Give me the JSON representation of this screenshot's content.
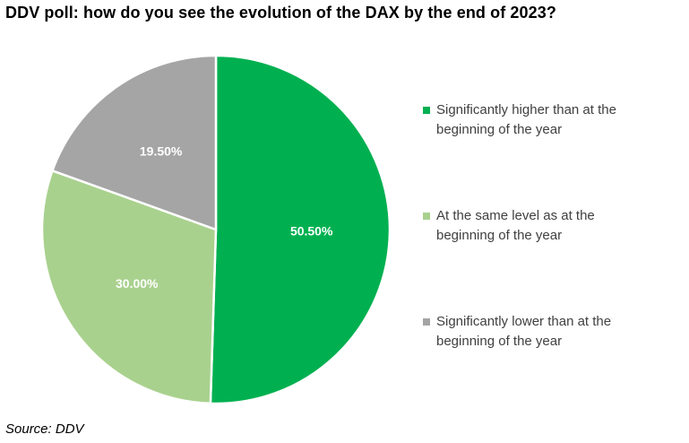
{
  "title": "DDV poll: how do you see the evolution of the DAX by the end of 2023?",
  "source": "Source: DDV",
  "chart_data": {
    "type": "pie",
    "title": "DDV poll: how do you see the evolution of the DAX by the end of 2023?",
    "slices": [
      {
        "label": "Significantly higher than at the beginning of the year",
        "value": 50.5,
        "display": "50.50%",
        "color": "#00b050"
      },
      {
        "label": "At the same level as at the beginning of the year",
        "value": 30.0,
        "display": "30.00%",
        "color": "#a9d18e"
      },
      {
        "label": "Significantly lower than at the beginning of the year",
        "value": 19.5,
        "display": "19.50%",
        "color": "#a5a5a5"
      }
    ],
    "legend_position": "right",
    "start_angle": "top",
    "direction": "clockwise"
  }
}
